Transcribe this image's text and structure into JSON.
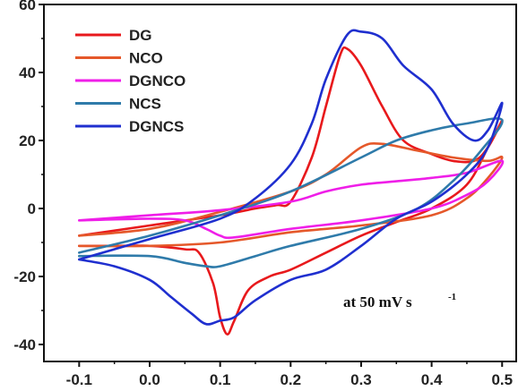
{
  "chart_data": {
    "type": "line",
    "title": "",
    "xlabel": "",
    "ylabel": "",
    "xlim": [
      -0.15,
      0.52
    ],
    "ylim": [
      -45,
      60
    ],
    "xticks": [
      -0.1,
      0.0,
      0.1,
      0.2,
      0.3,
      0.4,
      0.5
    ],
    "yticks": [
      -40,
      -20,
      0,
      20,
      40,
      60
    ],
    "xtick_labels": [
      "-0.1",
      "0.0",
      "0.1",
      "0.2",
      "0.3",
      "0.4",
      "0.5"
    ],
    "ytick_labels": [
      "-40",
      "-20",
      "0",
      "20",
      "40",
      "60"
    ],
    "grid": false,
    "legend_position": "top-left",
    "annotation": {
      "text": "at 50 mV s",
      "superscript": "-1"
    },
    "series": [
      {
        "name": "DG",
        "color": "#e8191c",
        "x": [
          -0.1,
          0.0,
          0.1,
          0.15,
          0.18,
          0.2,
          0.23,
          0.25,
          0.27,
          0.28,
          0.3,
          0.33,
          0.36,
          0.4,
          0.43,
          0.46,
          0.48,
          0.5,
          0.48,
          0.45,
          0.4,
          0.35,
          0.3,
          0.25,
          0.2,
          0.17,
          0.14,
          0.12,
          0.11,
          0.1,
          0.09,
          0.07,
          0.05,
          0.0,
          -0.05,
          -0.1
        ],
        "y": [
          -8,
          -5,
          -2,
          0,
          1,
          2,
          15,
          30,
          45,
          47,
          42,
          30,
          20,
          16,
          14,
          14,
          18,
          26,
          18,
          7,
          0,
          -4,
          -8,
          -13,
          -18,
          -20,
          -24,
          -33,
          -37,
          -32,
          -22,
          -13,
          -12,
          -11,
          -11,
          -11
        ]
      },
      {
        "name": "NCO",
        "color": "#e5582a",
        "x": [
          -0.1,
          0.0,
          0.1,
          0.2,
          0.25,
          0.3,
          0.33,
          0.38,
          0.43,
          0.48,
          0.5,
          0.48,
          0.45,
          0.4,
          0.3,
          0.2,
          0.1,
          0.0,
          -0.1
        ],
        "y": [
          -8,
          -6,
          -1,
          5,
          10,
          18,
          19,
          17,
          15,
          14,
          15,
          9,
          3,
          -2,
          -5,
          -7,
          -10,
          -11,
          -11
        ]
      },
      {
        "name": "DGNCO",
        "color": "#ef1ee8",
        "x": [
          -0.1,
          0.0,
          0.1,
          0.2,
          0.25,
          0.3,
          0.35,
          0.4,
          0.45,
          0.5,
          0.48,
          0.45,
          0.4,
          0.3,
          0.2,
          0.12,
          0.1,
          0.08,
          0.05,
          0.0,
          -0.1
        ],
        "y": [
          -3.5,
          -2,
          -0.5,
          2,
          5,
          7,
          8,
          9,
          10.5,
          14,
          8,
          4,
          0,
          -3.5,
          -6,
          -8.5,
          -8,
          -6,
          -3.5,
          -3,
          -3.5
        ]
      },
      {
        "name": "NCS",
        "color": "#2f7baa",
        "x": [
          -0.1,
          0.0,
          0.1,
          0.2,
          0.3,
          0.35,
          0.4,
          0.45,
          0.5,
          0.47,
          0.43,
          0.38,
          0.3,
          0.2,
          0.15,
          0.1,
          0.08,
          0.05,
          0.0,
          -0.1
        ],
        "y": [
          -13,
          -8,
          -2,
          5,
          15,
          20,
          23,
          25,
          26,
          17,
          8,
          0,
          -6,
          -11,
          -14,
          -17,
          -17,
          -16,
          -14,
          -14
        ]
      },
      {
        "name": "DGNCS",
        "color": "#1f2fcf",
        "x": [
          -0.1,
          0.0,
          0.1,
          0.15,
          0.2,
          0.23,
          0.25,
          0.28,
          0.3,
          0.33,
          0.36,
          0.4,
          0.43,
          0.46,
          0.48,
          0.5,
          0.48,
          0.45,
          0.4,
          0.35,
          0.3,
          0.25,
          0.2,
          0.15,
          0.12,
          0.1,
          0.08,
          0.06,
          0.03,
          0.0,
          -0.05,
          -0.1
        ],
        "y": [
          -15,
          -9,
          -3,
          3,
          13,
          25,
          38,
          51,
          52,
          50,
          42,
          35,
          25,
          20,
          23,
          31,
          18,
          10,
          2,
          -3,
          -11,
          -18,
          -21,
          -27,
          -32,
          -33,
          -34,
          -31,
          -26,
          -21,
          -17,
          -15
        ]
      }
    ]
  }
}
